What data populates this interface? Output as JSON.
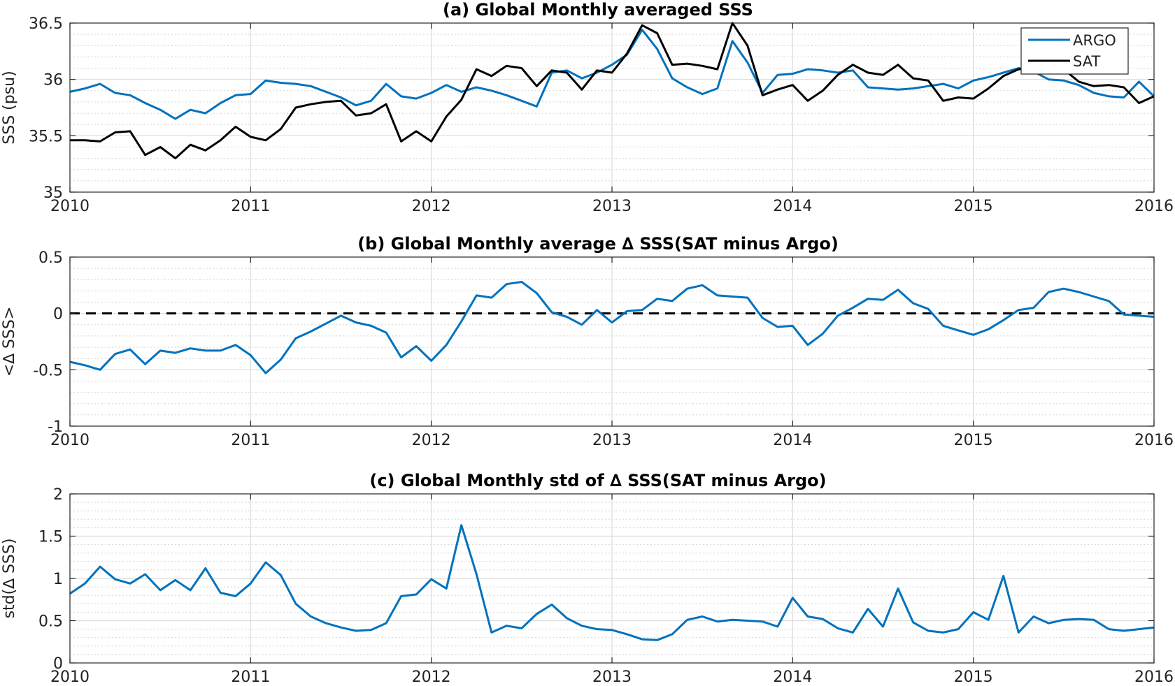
{
  "colors": {
    "argo": "#0072BD",
    "sat": "#000000",
    "zero_line": "#000000"
  },
  "chart_data": [
    {
      "type": "line",
      "title": "(a) Global Monthly averaged SSS",
      "ylabel": "SSS (psu)",
      "xlim": [
        2010,
        2016
      ],
      "ylim": [
        35,
        36.5
      ],
      "xticks": [
        "2010",
        "2011",
        "2012",
        "2013",
        "2014",
        "2015",
        "2016"
      ],
      "yticks": [
        "35",
        "35.5",
        "36",
        "36.5"
      ],
      "legend": "top-right",
      "grid": true,
      "series": [
        {
          "name": "ARGO",
          "color": "#0072BD",
          "values": [
            35.89,
            35.92,
            35.96,
            35.88,
            35.86,
            35.79,
            35.73,
            35.65,
            35.73,
            35.7,
            35.79,
            35.86,
            35.87,
            35.99,
            35.97,
            35.96,
            35.94,
            35.89,
            35.84,
            35.77,
            35.81,
            35.96,
            35.85,
            35.83,
            35.88,
            35.95,
            35.89,
            35.93,
            35.9,
            35.86,
            35.81,
            35.76,
            36.06,
            36.08,
            36.01,
            36.06,
            36.13,
            36.22,
            36.44,
            36.27,
            36.01,
            35.93,
            35.87,
            35.92,
            36.34,
            36.15,
            35.88,
            36.04,
            36.05,
            36.09,
            36.08,
            36.06,
            36.08,
            35.93,
            35.92,
            35.91,
            35.92,
            35.94,
            35.96,
            35.92,
            35.99,
            36.02,
            36.06,
            36.1,
            36.07,
            36.0,
            35.99,
            35.95,
            35.88,
            35.85,
            35.84,
            35.98,
            35.85
          ]
        },
        {
          "name": "SAT",
          "color": "#000000",
          "values": [
            35.46,
            35.46,
            35.45,
            35.53,
            35.54,
            35.33,
            35.4,
            35.3,
            35.42,
            35.37,
            35.46,
            35.58,
            35.49,
            35.46,
            35.56,
            35.75,
            35.78,
            35.8,
            35.81,
            35.68,
            35.7,
            35.78,
            35.45,
            35.54,
            35.45,
            35.67,
            35.82,
            36.09,
            36.03,
            36.12,
            36.1,
            35.94,
            36.08,
            36.06,
            35.91,
            36.08,
            36.06,
            36.23,
            36.48,
            36.41,
            36.13,
            36.14,
            36.12,
            36.09,
            36.5,
            36.3,
            35.86,
            35.91,
            35.95,
            35.81,
            35.9,
            36.04,
            36.13,
            36.06,
            36.04,
            36.13,
            36.01,
            35.99,
            35.81,
            35.84,
            35.83,
            35.92,
            36.03,
            36.09,
            36.1,
            36.06,
            36.09,
            35.98,
            35.94,
            35.95,
            35.93,
            35.79,
            35.85
          ]
        }
      ]
    },
    {
      "type": "line",
      "title": "(b) Global Monthly average ∆ SSS(SAT minus Argo)",
      "ylabel": "<∆ SSS>",
      "xlim": [
        2010,
        2016
      ],
      "ylim": [
        -1,
        0.5
      ],
      "xticks": [
        "2010",
        "2011",
        "2012",
        "2013",
        "2014",
        "2015",
        "2016"
      ],
      "yticks": [
        "-1",
        "-0.5",
        "0",
        "0.5"
      ],
      "grid": true,
      "reference_line": 0,
      "series": [
        {
          "color": "#0072BD",
          "values": [
            -0.43,
            -0.46,
            -0.5,
            -0.36,
            -0.32,
            -0.45,
            -0.33,
            -0.35,
            -0.31,
            -0.33,
            -0.33,
            -0.28,
            -0.37,
            -0.53,
            -0.41,
            -0.22,
            -0.16,
            -0.09,
            -0.02,
            -0.08,
            -0.11,
            -0.17,
            -0.39,
            -0.29,
            -0.42,
            -0.28,
            -0.07,
            0.16,
            0.14,
            0.26,
            0.28,
            0.18,
            0.01,
            -0.03,
            -0.1,
            0.03,
            -0.08,
            0.02,
            0.03,
            0.13,
            0.11,
            0.22,
            0.25,
            0.16,
            0.15,
            0.14,
            -0.04,
            -0.12,
            -0.11,
            -0.28,
            -0.18,
            -0.02,
            0.05,
            0.13,
            0.12,
            0.21,
            0.09,
            0.04,
            -0.11,
            -0.15,
            -0.19,
            -0.14,
            -0.06,
            0.03,
            0.05,
            0.19,
            0.22,
            0.19,
            0.15,
            0.11,
            -0.01,
            -0.02,
            -0.03
          ]
        }
      ]
    },
    {
      "type": "line",
      "title": "(c) Global Monthly std of ∆ SSS(SAT minus Argo)",
      "ylabel": "std(∆ SSS)",
      "xlim": [
        2010,
        2016
      ],
      "ylim": [
        0,
        2
      ],
      "xticks": [
        "2010",
        "2011",
        "2012",
        "2013",
        "2014",
        "2015",
        "2016"
      ],
      "yticks": [
        "0",
        "0.5",
        "1",
        "1.5",
        "2"
      ],
      "grid": true,
      "series": [
        {
          "color": "#0072BD",
          "values": [
            0.82,
            0.94,
            1.14,
            0.99,
            0.94,
            1.05,
            0.86,
            0.98,
            0.86,
            1.12,
            0.83,
            0.79,
            0.94,
            1.19,
            1.04,
            0.7,
            0.55,
            0.47,
            0.42,
            0.38,
            0.39,
            0.47,
            0.79,
            0.81,
            0.99,
            0.88,
            1.63,
            1.05,
            0.36,
            0.44,
            0.41,
            0.58,
            0.69,
            0.53,
            0.44,
            0.4,
            0.39,
            0.34,
            0.28,
            0.27,
            0.34,
            0.51,
            0.55,
            0.49,
            0.51,
            0.5,
            0.49,
            0.43,
            0.77,
            0.55,
            0.52,
            0.41,
            0.36,
            0.64,
            0.43,
            0.88,
            0.48,
            0.38,
            0.36,
            0.4,
            0.6,
            0.51,
            1.03,
            0.36,
            0.55,
            0.47,
            0.51,
            0.52,
            0.51,
            0.4,
            0.38,
            0.4,
            0.42
          ]
        }
      ]
    }
  ]
}
